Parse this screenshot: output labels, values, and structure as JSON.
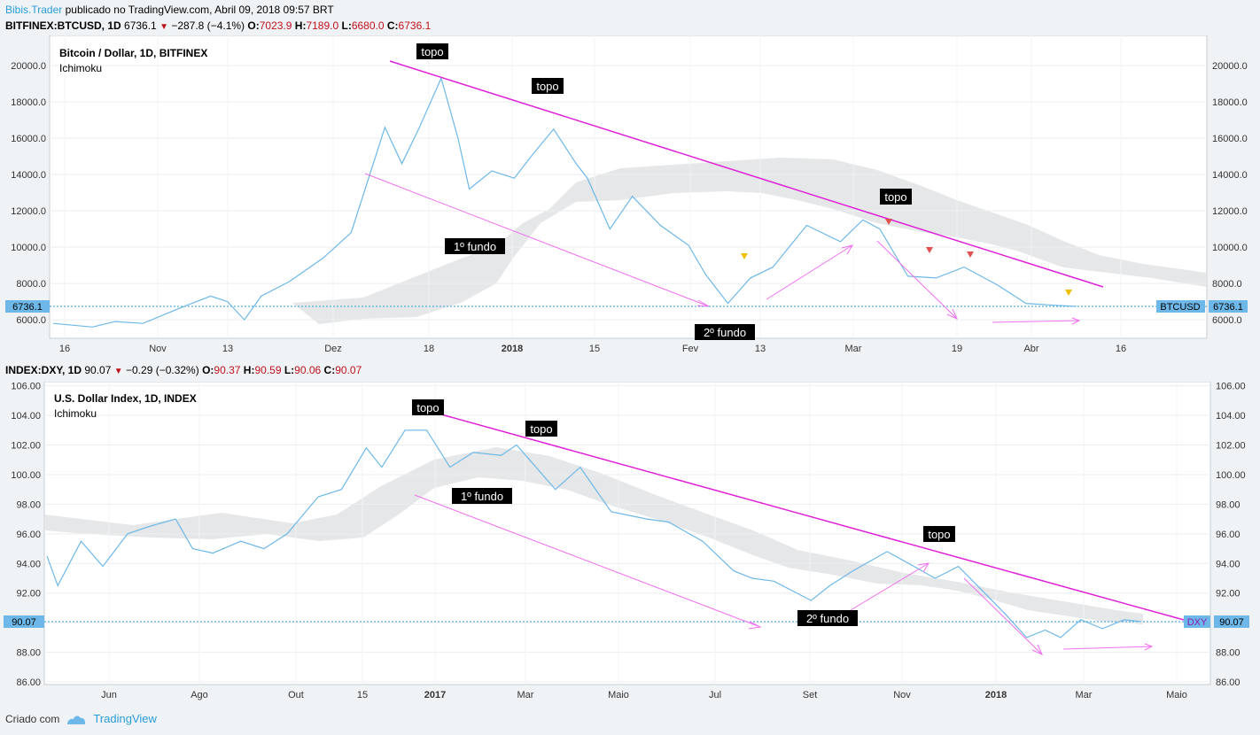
{
  "header": {
    "author": "Bibis.Trader",
    "published_text": "publicado no TradingView.com, Abril 09, 2018 09:57 BRT"
  },
  "panels": [
    {
      "symbol": "BITFINEX:BTCUSD, 1D",
      "last": "6736.1",
      "change": "−287.8 (−4.1%)",
      "o_label": "O:",
      "o": "7023.9",
      "h_label": "H:",
      "h": "7189.0",
      "l_label": "L:",
      "l": "6680.0",
      "c_label": "C:",
      "c": "6736.1",
      "title": "Bitcoin / Dollar, 1D, BITFINEX",
      "indicator": "Ichimoku",
      "price_tag": "6736.1",
      "ticker_tag": "BTCUSD",
      "y_ticks": [
        "20000.0",
        "18000.0",
        "16000.0",
        "14000.0",
        "12000.0",
        "10000.0",
        "8000.0",
        "6000.0"
      ],
      "x_ticks": [
        "16",
        "Nov",
        "13",
        "Dez",
        "18",
        "2018",
        "15",
        "Fev",
        "13",
        "Mar",
        "19",
        "Abr",
        "16"
      ],
      "annotations": [
        "topo",
        "topo",
        "topo",
        "1º fundo",
        "2º fundo"
      ]
    },
    {
      "symbol": "INDEX:DXY, 1D",
      "last": "90.07",
      "change": "−0.29 (−0.32%)",
      "o_label": "O:",
      "o": "90.37",
      "h_label": "H:",
      "h": "90.59",
      "l_label": "L:",
      "l": "90.06",
      "c_label": "C:",
      "c": "90.07",
      "title": "U.S. Dollar Index, 1D, INDEX",
      "indicator": "Ichimoku",
      "price_tag": "90.07",
      "ticker_tag": "DXY",
      "y_ticks": [
        "106.00",
        "104.00",
        "102.00",
        "100.00",
        "98.00",
        "96.00",
        "94.00",
        "92.00",
        "90.00",
        "88.00",
        "86.00"
      ],
      "x_ticks": [
        "Jun",
        "Ago",
        "Out",
        "15",
        "2017",
        "Mar",
        "Maio",
        "Jul",
        "Set",
        "Nov",
        "2018",
        "Mar",
        "Maio"
      ],
      "annotations": [
        "topo",
        "topo",
        "topo",
        "1º fundo",
        "2º fundo"
      ]
    }
  ],
  "footer": {
    "created_with": "Criado com",
    "tv_brand": "TradingView"
  },
  "colors": {
    "price_line": "#6db8e8",
    "trendline": "#e020d8",
    "arrow": "#f070f0",
    "cloud": "#e2e4e6",
    "price_tag_bg": "#6db8e8",
    "marker_red": "#e05050",
    "marker_yellow": "#f0c000"
  },
  "chart_data": [
    {
      "type": "line",
      "title": "Bitcoin / Dollar, 1D, BITFINEX",
      "ylim": [
        5400,
        21500
      ],
      "x_tick_labels": [
        "16",
        "Nov",
        "13",
        "Dez",
        "18",
        "2018",
        "15",
        "Fev",
        "13",
        "Mar",
        "19",
        "Abr",
        "16"
      ],
      "series": [
        {
          "name": "BTCUSD",
          "x": [
            "Oct 09",
            "Oct 16",
            "Oct 20",
            "Oct 25",
            "Nov 01",
            "Nov 06",
            "Nov 09",
            "Nov 12",
            "Nov 15",
            "Nov 20",
            "Nov 26",
            "Dec 01",
            "Dec 07",
            "Dec 10",
            "Dec 13",
            "Dec 17",
            "Dec 20",
            "Dec 22",
            "Dec 26",
            "Dec 30",
            "Jan 02",
            "Jan 06",
            "Jan 10",
            "Jan 12",
            "Jan 16",
            "Jan 20",
            "Jan 25",
            "Jan 30",
            "Feb 02",
            "Feb 06",
            "Feb 10",
            "Feb 14",
            "Feb 20",
            "Feb 26",
            "Mar 02",
            "Mar 05",
            "Mar 10",
            "Mar 15",
            "Mar 20",
            "Mar 26",
            "Mar 31",
            "Apr 05",
            "Apr 09"
          ],
          "values": [
            5800,
            5600,
            5900,
            5800,
            6700,
            7300,
            7000,
            6000,
            7300,
            8100,
            9400,
            10800,
            16600,
            14600,
            16500,
            19300,
            16000,
            13200,
            14200,
            13800,
            15000,
            16500,
            14600,
            13800,
            11000,
            12800,
            11200,
            10100,
            8500,
            6900,
            8300,
            8900,
            11200,
            10300,
            11500,
            11000,
            8400,
            8300,
            8900,
            7900,
            6900,
            6800,
            6736.1
          ]
        }
      ],
      "annotations": [
        "topo",
        "topo",
        "topo",
        "1º fundo",
        "2º fundo"
      ]
    },
    {
      "type": "line",
      "title": "U.S. Dollar Index, 1D, INDEX",
      "ylim": [
        86,
        106
      ],
      "x_tick_labels": [
        "Jun",
        "Ago",
        "Out",
        "15",
        "2017",
        "Mar",
        "Maio",
        "Jul",
        "Set",
        "Nov",
        "2018",
        "Mar",
        "Maio"
      ],
      "series": [
        {
          "name": "DXY",
          "x": [
            "2016-05-03",
            "2016-05-10",
            "2016-05-25",
            "2016-06-08",
            "2016-06-24",
            "2016-07-08",
            "2016-07-25",
            "2016-08-05",
            "2016-08-18",
            "2016-09-05",
            "2016-09-20",
            "2016-10-05",
            "2016-10-25",
            "2016-11-09",
            "2016-11-25",
            "2016-12-05",
            "2016-12-20",
            "2017-01-03",
            "2017-01-18",
            "2017-02-02",
            "2017-02-20",
            "2017-03-02",
            "2017-03-27",
            "2017-04-12",
            "2017-05-02",
            "2017-05-25",
            "2017-06-08",
            "2017-06-30",
            "2017-07-20",
            "2017-08-01",
            "2017-08-15",
            "2017-09-08",
            "2017-09-20",
            "2017-10-05",
            "2017-10-27",
            "2017-11-10",
            "2017-11-27",
            "2017-12-12",
            "2017-12-29",
            "2018-01-12",
            "2018-01-25",
            "2018-02-06",
            "2018-02-16",
            "2018-03-01",
            "2018-03-15",
            "2018-03-29",
            "2018-04-09"
          ],
          "values": [
            94.5,
            92.5,
            95.5,
            93.8,
            96.0,
            96.5,
            97.0,
            95.0,
            94.7,
            95.5,
            95.0,
            96.0,
            98.5,
            99.0,
            101.8,
            100.5,
            103.0,
            103.0,
            100.5,
            101.5,
            101.3,
            102.0,
            99.0,
            100.5,
            97.5,
            97.0,
            96.8,
            95.5,
            93.5,
            93.0,
            92.8,
            91.5,
            92.5,
            93.5,
            94.8,
            94.0,
            93.0,
            93.8,
            92.0,
            90.5,
            89.0,
            89.5,
            89.0,
            90.2,
            89.6,
            90.2,
            90.07
          ]
        }
      ],
      "annotations": [
        "topo",
        "topo",
        "topo",
        "1º fundo",
        "2º fundo"
      ]
    }
  ]
}
